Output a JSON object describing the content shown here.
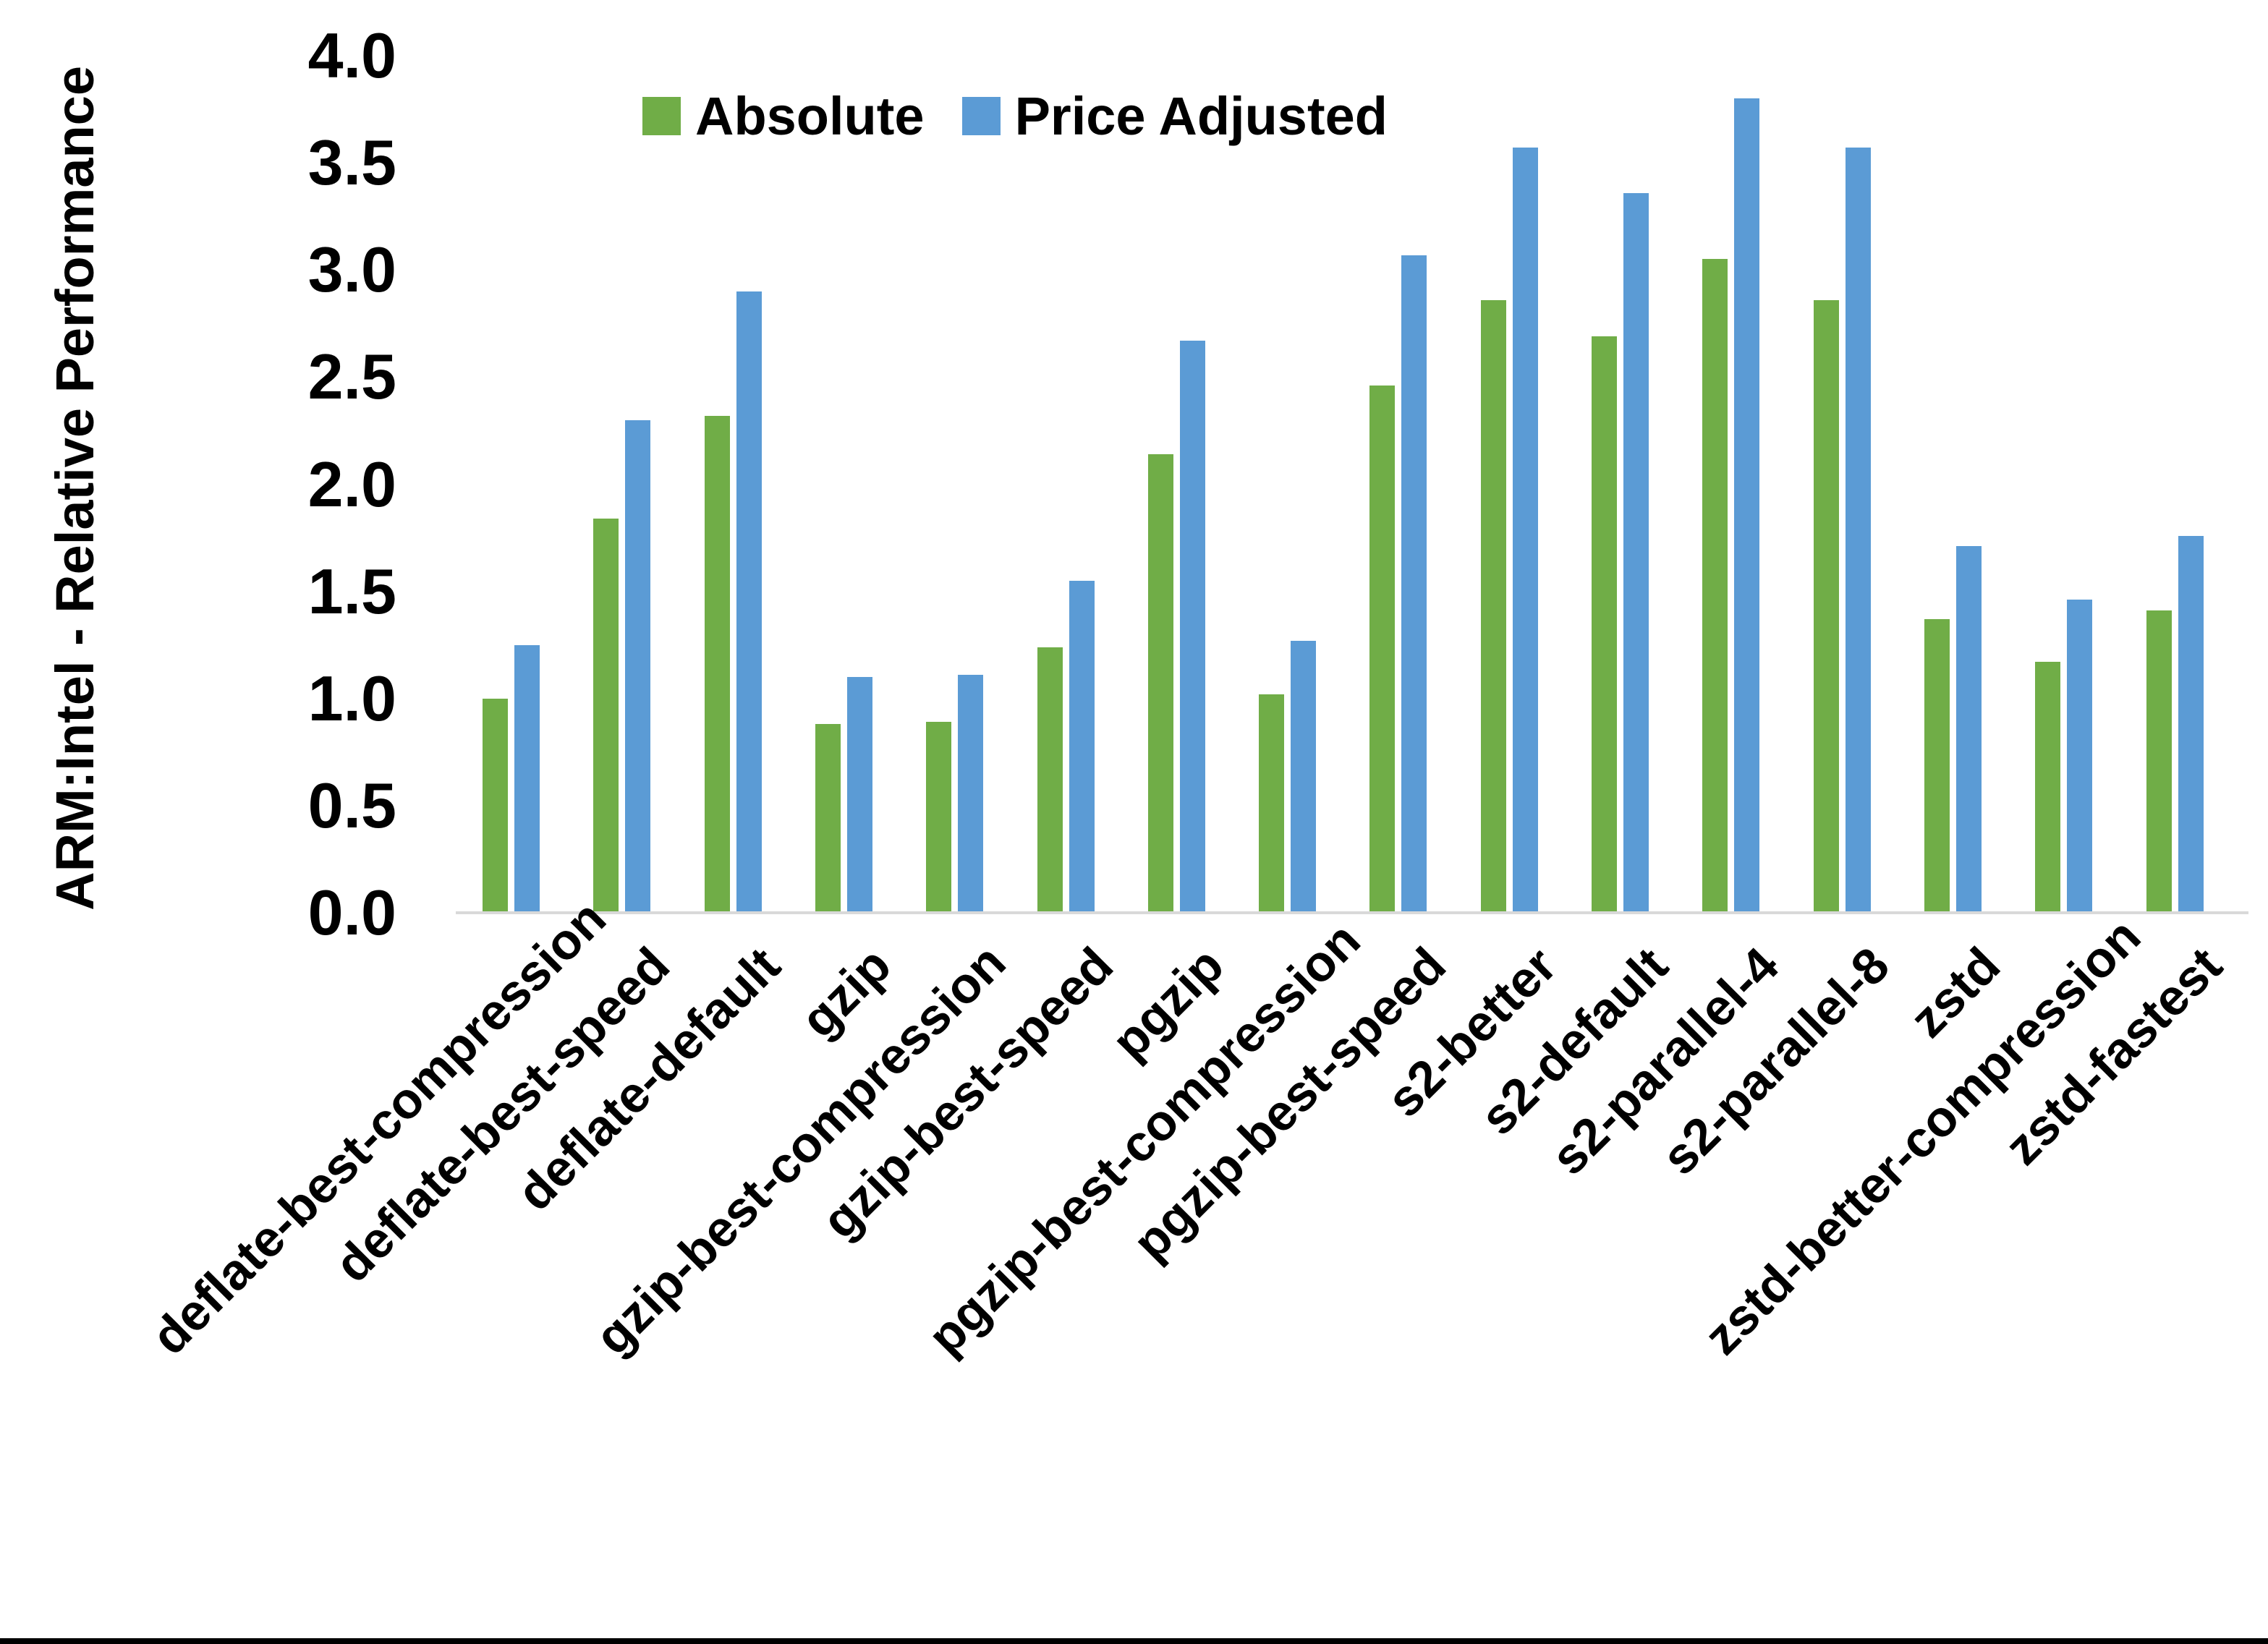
{
  "chart_data": {
    "type": "bar",
    "title": "",
    "xlabel": "",
    "ylabel": "ARM:Intel - Relative Performance",
    "ylim": [
      0.0,
      4.0
    ],
    "ytick_step": 0.5,
    "ytick_labels": [
      "0.0",
      "0.5",
      "1.0",
      "1.5",
      "2.0",
      "2.5",
      "3.0",
      "3.5",
      "4.0"
    ],
    "grid": false,
    "legend_position": "top-center",
    "categories": [
      "deflate-best-compression",
      "deflate-best-speed",
      "deflate-default",
      "gzip",
      "gzip-best-compression",
      "gzip-best-speed",
      "pgzip",
      "pgzip-best-compression",
      "pgzip-best-speed",
      "s2-better",
      "s2-default",
      "s2-parallel-4",
      "s2-parallel-8",
      "zstd",
      "zstd-better-compression",
      "zstd-fastest"
    ],
    "series": [
      {
        "name": "Absolute",
        "color": "#70AD47",
        "values": [
          1.0,
          1.84,
          2.32,
          0.88,
          0.89,
          1.24,
          2.14,
          1.02,
          2.46,
          2.86,
          2.69,
          3.05,
          2.86,
          1.37,
          1.17,
          1.41
        ]
      },
      {
        "name": "Price Adjusted",
        "color": "#5B9BD5",
        "values": [
          1.25,
          2.3,
          2.9,
          1.1,
          1.11,
          1.55,
          2.67,
          1.27,
          3.07,
          3.57,
          3.36,
          3.8,
          3.57,
          1.71,
          1.46,
          1.76
        ]
      }
    ]
  },
  "colors": {
    "background": "#FFFFFF",
    "axis_line": "#D9D9D9",
    "text": "#000000",
    "bottom_border": "#000000"
  }
}
